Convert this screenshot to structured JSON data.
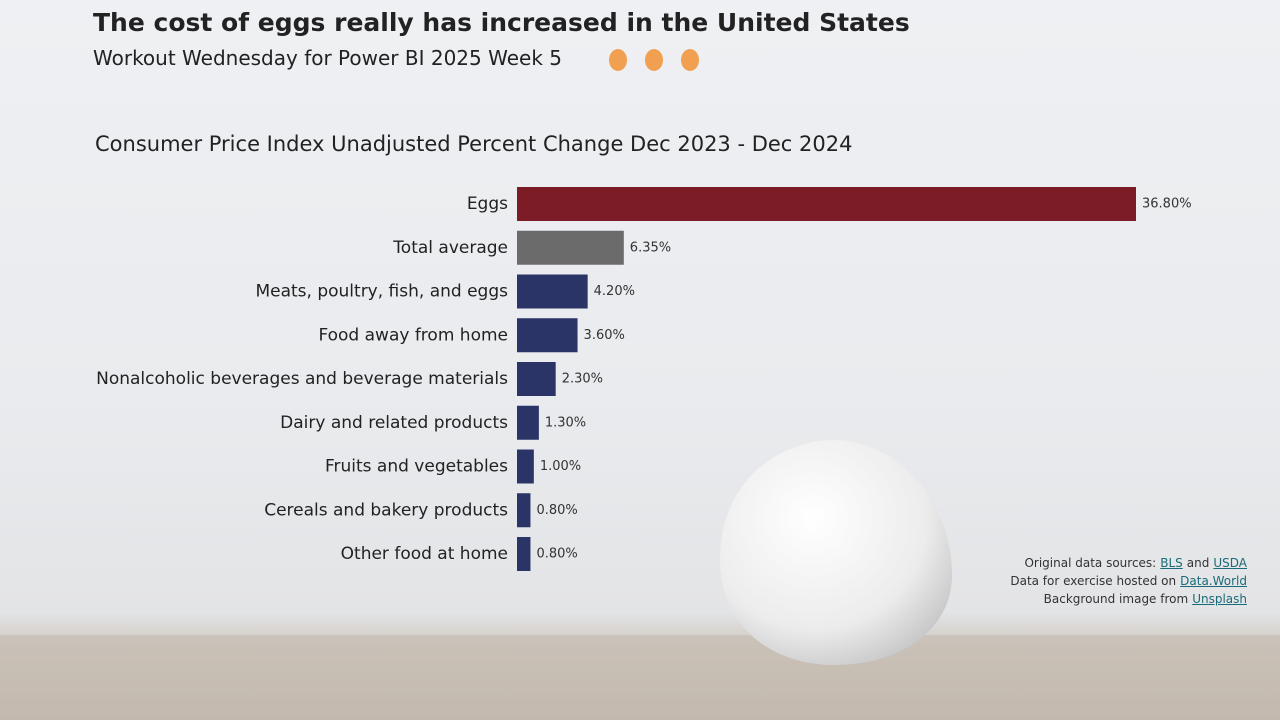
{
  "header": {
    "title": "The cost of eggs really has increased in the United States",
    "subtitle": "Workout Wednesday for Power BI 2025 Week 5"
  },
  "chart_data": {
    "type": "bar",
    "orientation": "horizontal",
    "title": "Consumer Price Index Unadjusted Percent Change Dec 2023 - Dec 2024",
    "categories": [
      "Eggs",
      "Total average",
      "Meats, poultry, fish, and eggs",
      "Food away from home",
      "Nonalcoholic beverages and beverage materials",
      "Dairy and related products",
      "Fruits and vegetables",
      "Cereals and bakery products",
      "Other food at home"
    ],
    "values": [
      36.8,
      6.35,
      4.2,
      3.6,
      2.3,
      1.3,
      1.0,
      0.8,
      0.8
    ],
    "value_labels": [
      "36.80%",
      "6.35%",
      "4.20%",
      "3.60%",
      "2.30%",
      "1.30%",
      "1.00%",
      "0.80%",
      "0.80%"
    ],
    "colors": [
      "#7b1c26",
      "#6b6b6b",
      "#2b3467",
      "#2b3467",
      "#2b3467",
      "#2b3467",
      "#2b3467",
      "#2b3467",
      "#2b3467"
    ]
  },
  "sources": [
    [
      {
        "text": "Original data sources:"
      },
      {
        "link": "BLS"
      },
      {
        "text": "and"
      },
      {
        "link": "USDA"
      }
    ],
    [
      {
        "text": "Data for exercise hosted on"
      },
      {
        "link": "Data.World"
      }
    ],
    [
      {
        "text": "Background image from"
      },
      {
        "link": "Unsplash"
      }
    ]
  ]
}
